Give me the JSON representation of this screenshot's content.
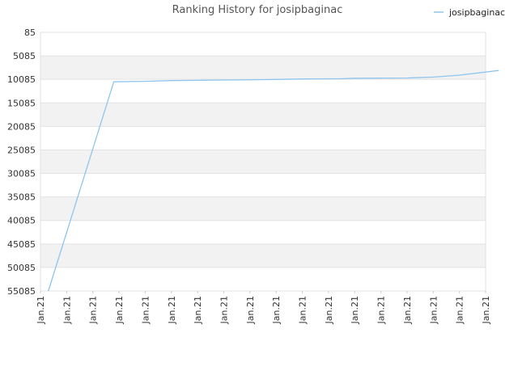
{
  "chart_data": {
    "type": "line",
    "title": "Ranking History for josipbaginac",
    "xlabel": "",
    "ylabel": "",
    "y_inverted": true,
    "ylim": [
      85,
      55085
    ],
    "y_ticks": [
      85,
      5085,
      10085,
      15085,
      20085,
      25085,
      30085,
      35085,
      40085,
      45085,
      50085,
      55085
    ],
    "x_tick_labels": [
      "Jan.21",
      "Jan.21",
      "Jan.21",
      "Jan.21",
      "Jan.21",
      "Jan.21",
      "Jan.21",
      "Jan.21",
      "Jan.21",
      "Jan.21",
      "Jan.21",
      "Jan.21",
      "Jan.21",
      "Jan.21",
      "Jan.21",
      "Jan.21",
      "Jan.21",
      "Jan.21"
    ],
    "grid": "horizontal bands",
    "legend_position": "top-right",
    "series": [
      {
        "name": "josipbaginac",
        "color": "#8ec5ee",
        "x": [
          0.3,
          2.8,
          4.0,
          5.0,
          6.0,
          6.5,
          7.5,
          9.0,
          10.0,
          11.5,
          12.0,
          14.0,
          15.0,
          16.0,
          17.5
        ],
        "values": [
          55085,
          10600,
          10500,
          10350,
          10300,
          10250,
          10200,
          10100,
          10000,
          9950,
          9850,
          9800,
          9600,
          9200,
          8200
        ]
      }
    ]
  }
}
